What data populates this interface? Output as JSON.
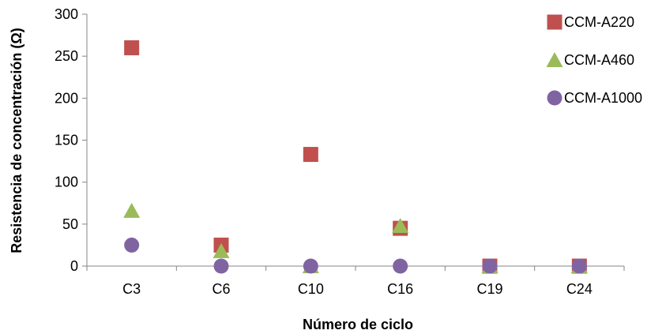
{
  "chart_data": {
    "type": "scatter",
    "title": "",
    "xlabel": "Número de ciclo",
    "ylabel": "Resistencia de concentración (Ω)",
    "categories": [
      "C3",
      "C6",
      "C10",
      "C16",
      "C19",
      "C24"
    ],
    "ylim": [
      0,
      300
    ],
    "yticks": [
      0,
      50,
      100,
      150,
      200,
      250,
      300
    ],
    "grid": false,
    "legend_position": "top-right",
    "series": [
      {
        "name": "CCM-A220",
        "marker": "square",
        "color": "#C0504D",
        "values": [
          260,
          25,
          133,
          45,
          0,
          0
        ]
      },
      {
        "name": "CCM-A460",
        "marker": "triangle",
        "color": "#9BBB59",
        "values": [
          66,
          18,
          0,
          48,
          0,
          0
        ]
      },
      {
        "name": "CCM-A1000",
        "marker": "circle",
        "color": "#8064A2",
        "values": [
          25,
          0,
          0,
          0,
          0,
          0
        ]
      }
    ]
  }
}
